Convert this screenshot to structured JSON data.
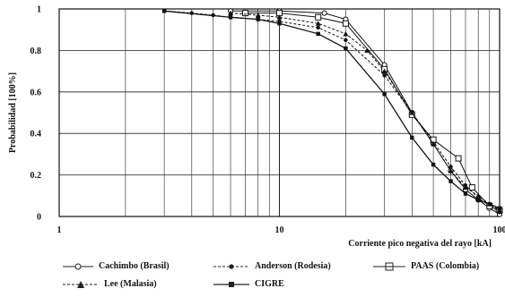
{
  "chart_data": {
    "type": "line",
    "xscale": "log",
    "xlim": [
      1,
      100
    ],
    "ylim": [
      0,
      1
    ],
    "xticks": [
      "1",
      "10",
      "100"
    ],
    "yticks": [
      "0",
      "0.2",
      "0.4",
      "0.6",
      "0.8",
      "1"
    ],
    "xlabel": "Corriente pico negativa del rayo  [kA]",
    "ylabel": "Probabilidad [100%]",
    "grid": true,
    "legend_position": "bottom",
    "series": [
      {
        "name": "Cachimbo (Brasil)",
        "marker": "open-circle",
        "line": "solid",
        "x": [
          6,
          10,
          16,
          20,
          30,
          40,
          50,
          60,
          70,
          80,
          90,
          100
        ],
        "y": [
          0.99,
          0.99,
          0.98,
          0.95,
          0.73,
          0.5,
          0.35,
          0.22,
          0.13,
          0.08,
          0.04,
          0.01
        ]
      },
      {
        "name": "Anderson (Rodesia)",
        "marker": "filled-circle",
        "line": "dashed",
        "x": [
          3,
          4,
          5,
          6,
          8,
          10,
          15,
          20,
          30,
          40,
          50,
          60,
          70,
          80,
          90,
          100
        ],
        "y": [
          0.99,
          0.98,
          0.97,
          0.96,
          0.95,
          0.94,
          0.91,
          0.85,
          0.68,
          0.5,
          0.36,
          0.24,
          0.15,
          0.09,
          0.05,
          0.02
        ]
      },
      {
        "name": "PAAS (Colombia)",
        "marker": "open-square",
        "line": "solid",
        "x": [
          7,
          10,
          15,
          20,
          30,
          40,
          50,
          65,
          75,
          90,
          100
        ],
        "y": [
          0.98,
          0.98,
          0.96,
          0.93,
          0.71,
          0.49,
          0.37,
          0.28,
          0.14,
          0.05,
          0.03
        ]
      },
      {
        "name": "Lee (Malasia)",
        "marker": "filled-triangle",
        "line": "dashed",
        "x": [
          6,
          8,
          10,
          15,
          20,
          25,
          30,
          40,
          50,
          60,
          70,
          80,
          90,
          100
        ],
        "y": [
          0.98,
          0.97,
          0.96,
          0.93,
          0.88,
          0.8,
          0.7,
          0.5,
          0.35,
          0.22,
          0.14,
          0.1,
          0.06,
          0.03
        ]
      },
      {
        "name": "CIGRE",
        "marker": "filled-square",
        "line": "solid",
        "x": [
          3,
          6,
          8,
          10,
          15,
          20,
          30,
          40,
          50,
          60,
          70,
          80,
          90,
          100
        ],
        "y": [
          0.99,
          0.96,
          0.95,
          0.93,
          0.88,
          0.81,
          0.59,
          0.38,
          0.25,
          0.17,
          0.11,
          0.08,
          0.06,
          0.04
        ]
      }
    ]
  }
}
